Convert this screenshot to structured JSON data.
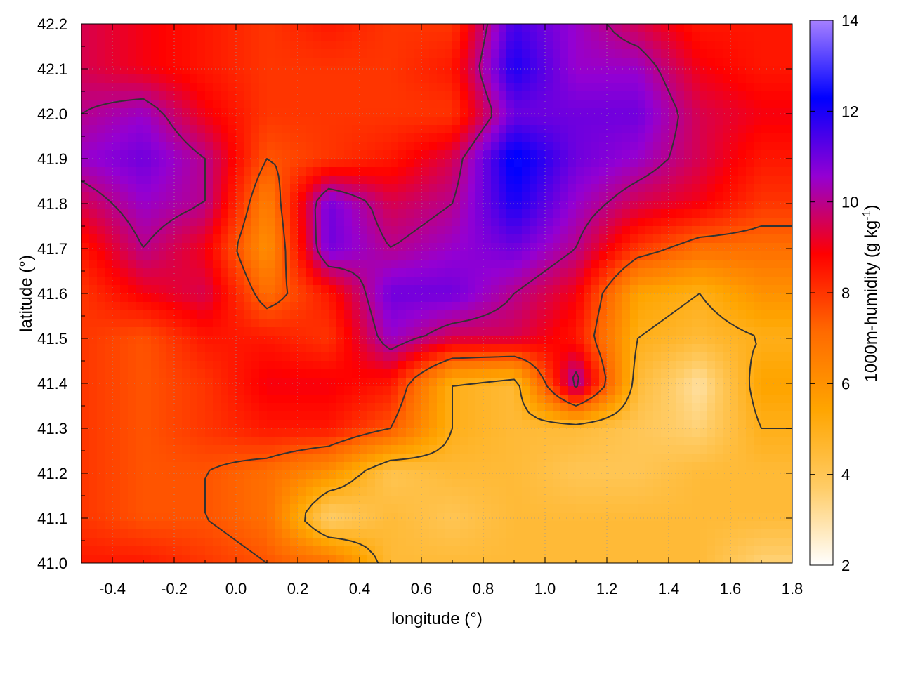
{
  "chart_data": {
    "type": "heatmap",
    "title": "",
    "xlabel": "longitude (°)",
    "ylabel": "latitude (°)",
    "colorbar_label": "1000m-humidity (g kg",
    "colorbar_label_sup": "-1",
    "colorbar_label_tail": ")",
    "xlim": [
      -0.5,
      1.8
    ],
    "ylim": [
      41.0,
      42.2
    ],
    "clim": [
      2,
      14
    ],
    "x_ticks": [
      -0.4,
      -0.2,
      0.0,
      0.2,
      0.4,
      0.6,
      0.8,
      1.0,
      1.2,
      1.4,
      1.6,
      1.8
    ],
    "x_tick_labels": [
      "-0.4",
      "-0.2",
      "0.0",
      "0.2",
      "0.4",
      "0.6",
      "0.8",
      "1.0",
      "1.2",
      "1.4",
      "1.6",
      "1.8"
    ],
    "y_ticks": [
      41.0,
      41.1,
      41.2,
      41.3,
      41.4,
      41.5,
      41.6,
      41.7,
      41.8,
      41.9,
      42.0,
      42.1,
      42.2
    ],
    "y_tick_labels": [
      "41.0",
      "41.1",
      "41.2",
      "41.3",
      "41.4",
      "41.5",
      "41.6",
      "41.7",
      "41.8",
      "41.9",
      "42.0",
      "42.1",
      "42.2"
    ],
    "colorbar_ticks": [
      2,
      4,
      6,
      8,
      10,
      12,
      14
    ],
    "colorbar_tick_labels": [
      "2",
      "4",
      "6",
      "8",
      "10",
      "12",
      "14"
    ],
    "colormap": [
      "#ffffff",
      "#ffcc66",
      "#ffa500",
      "#ff6a00",
      "#ff0000",
      "#9400d3",
      "#0000ff",
      "#a680ff"
    ],
    "contour_color": "#333333",
    "grid": true,
    "grid_y_count": 12,
    "field_rows": [
      "lat 42.2",
      "lat 42.1",
      "lat 42.0",
      "lat 41.9",
      "lat 41.8",
      "lat 41.7",
      "lat 41.6",
      "lat 41.5",
      "lat 41.4",
      "lat 41.3",
      "lat 41.2",
      "lat 41.1",
      "lat 41.0"
    ],
    "field_cols_lon": [
      -0.5,
      -0.3,
      -0.1,
      0.1,
      0.3,
      0.5,
      0.7,
      0.9,
      1.1,
      1.3,
      1.5,
      1.7
    ],
    "field_lat": [
      42.2,
      42.1,
      42.0,
      41.9,
      41.8,
      41.7,
      41.6,
      41.5,
      41.4,
      41.3,
      41.2,
      41.1,
      41.0
    ],
    "field_values": [
      [
        9.5,
        9.0,
        8.5,
        8.0,
        8.5,
        8.0,
        8.0,
        11.5,
        10.5,
        9.5,
        8.5,
        8.5
      ],
      [
        9.5,
        9.0,
        8.5,
        8.0,
        8.0,
        8.0,
        8.5,
        12.0,
        10.5,
        10.5,
        9.0,
        8.5
      ],
      [
        10.0,
        10.5,
        9.0,
        8.0,
        8.0,
        8.0,
        8.0,
        11.0,
        11.0,
        11.0,
        9.5,
        9.0
      ],
      [
        10.5,
        11.0,
        10.0,
        7.5,
        8.0,
        8.5,
        9.5,
        12.5,
        11.0,
        10.5,
        9.5,
        8.5
      ],
      [
        9.5,
        10.5,
        10.0,
        6.5,
        11.0,
        9.5,
        10.0,
        12.0,
        10.5,
        9.5,
        9.0,
        8.0
      ],
      [
        8.5,
        10.0,
        9.0,
        6.0,
        11.0,
        10.0,
        10.5,
        11.0,
        10.0,
        8.0,
        7.0,
        7.0
      ],
      [
        8.0,
        9.0,
        9.5,
        7.0,
        8.5,
        11.0,
        11.0,
        10.0,
        9.0,
        5.5,
        5.0,
        6.0
      ],
      [
        8.0,
        7.5,
        8.5,
        8.5,
        8.0,
        10.5,
        9.5,
        9.5,
        8.5,
        5.0,
        4.5,
        5.0
      ],
      [
        8.0,
        7.5,
        8.0,
        9.0,
        9.0,
        8.5,
        5.0,
        4.5,
        10.5,
        4.5,
        3.0,
        5.5
      ],
      [
        8.0,
        7.5,
        8.0,
        8.5,
        8.5,
        7.5,
        5.0,
        4.5,
        4.5,
        4.0,
        3.5,
        5.0
      ],
      [
        8.0,
        7.5,
        7.5,
        7.0,
        6.0,
        4.0,
        4.5,
        4.5,
        4.0,
        4.0,
        4.5,
        4.5
      ],
      [
        8.0,
        7.5,
        7.5,
        7.0,
        3.5,
        4.5,
        4.0,
        4.5,
        4.5,
        4.5,
        4.5,
        4.5
      ],
      [
        8.5,
        8.5,
        8.0,
        7.5,
        7.0,
        4.5,
        4.5,
        4.5,
        4.5,
        4.5,
        4.5,
        3.5
      ]
    ],
    "contour_levels": [
      5,
      7.5,
      10
    ]
  }
}
